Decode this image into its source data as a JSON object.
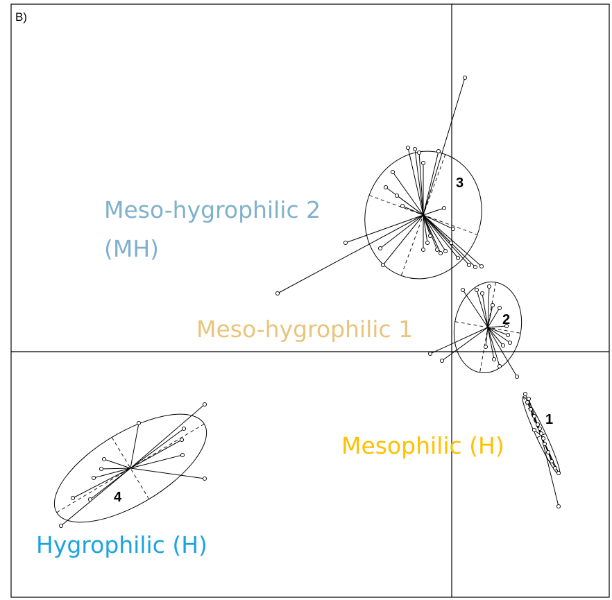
{
  "panel_label": "B)",
  "groups": [
    {
      "label": "1"
    },
    {
      "label": "2"
    },
    {
      "label": "3"
    },
    {
      "label": "4"
    }
  ],
  "annotations": [
    {
      "text": "Meso-hygrophilic 2"
    },
    {
      "text": "(MH)"
    },
    {
      "text": "Meso-hygrophilic 1"
    },
    {
      "text": "Mesophilic (H)"
    },
    {
      "text": "Hygrophilic (H)"
    }
  ]
}
